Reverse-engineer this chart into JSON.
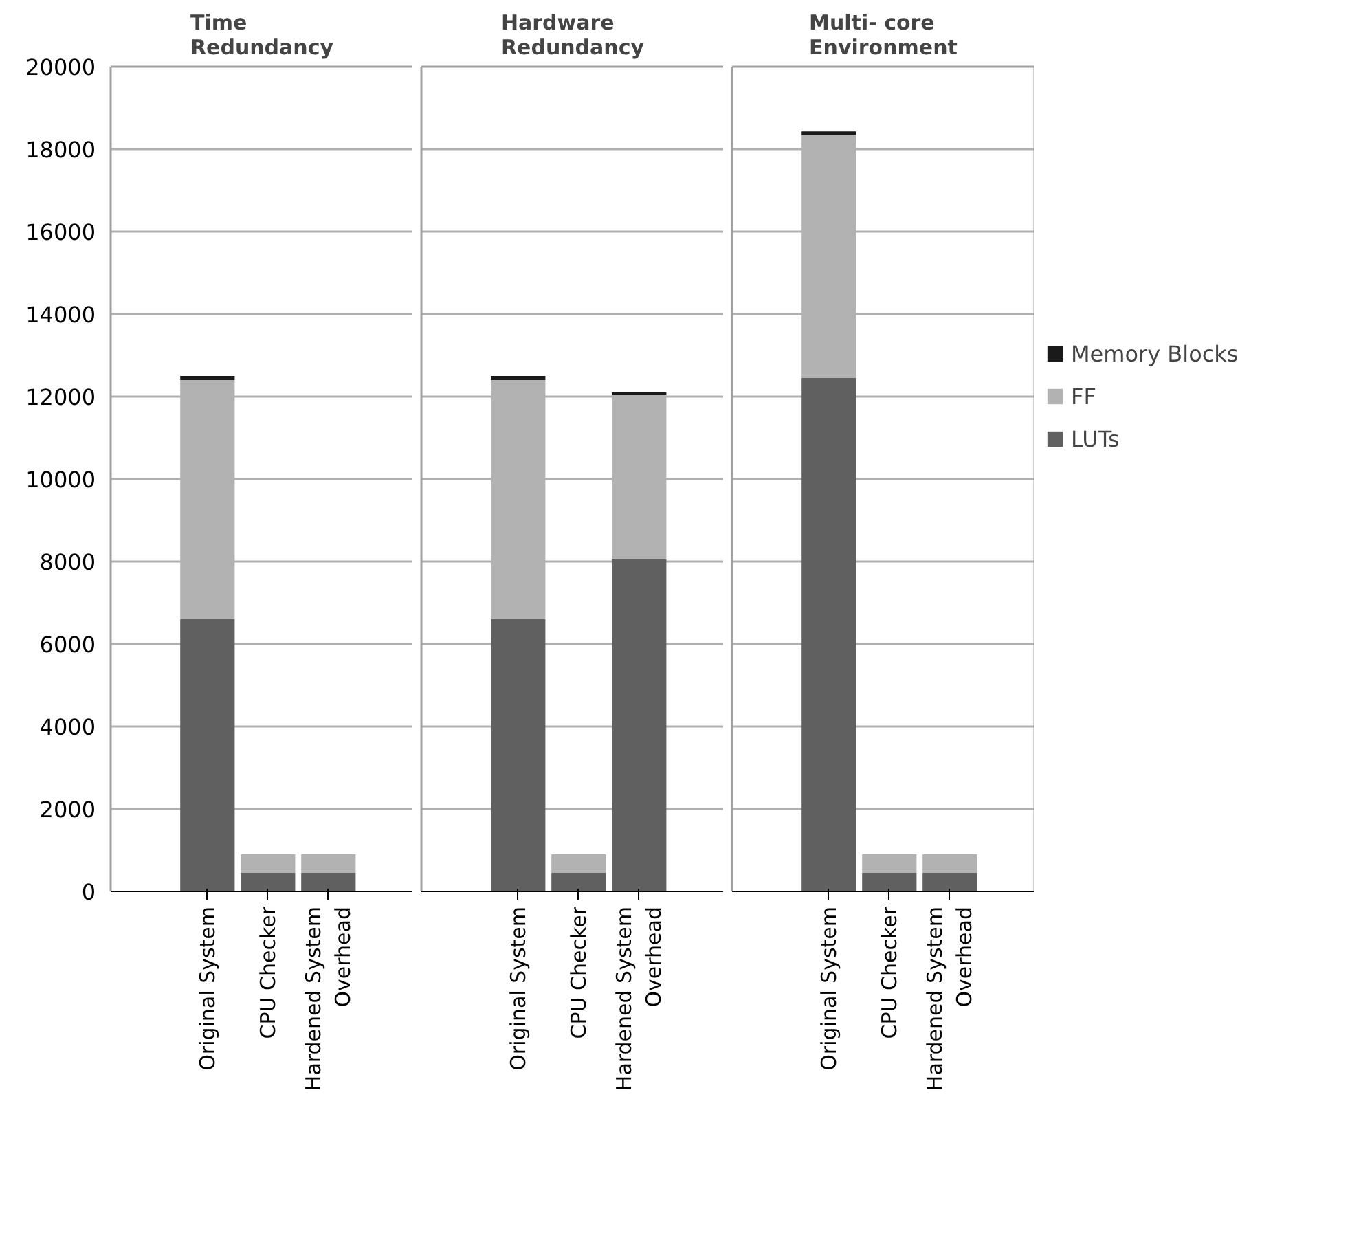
{
  "chart_data": [
    {
      "type": "bar",
      "stacked": true,
      "title": "Time\nRedundancy",
      "categories": [
        "Original System",
        "CPU Checker",
        "Hardened System\nOverhead"
      ],
      "ylim": [
        0,
        20000
      ],
      "yticks": [
        0,
        2000,
        4000,
        6000,
        8000,
        10000,
        12000,
        14000,
        16000,
        18000,
        20000
      ],
      "grid": "y",
      "series": [
        {
          "color": "#606060",
          "values": [
            6600,
            450,
            450
          ]
        },
        {
          "color": "#b2b2b2",
          "values": [
            5800,
            450,
            450
          ]
        },
        {
          "color": "#1a1a1a",
          "values": [
            100,
            0,
            0
          ]
        }
      ]
    },
    {
      "type": "bar",
      "stacked": true,
      "title": "Hardware\nRedundancy",
      "categories": [
        "Original System",
        "CPU Checker",
        "Hardened System\nOverhead"
      ],
      "ylim": [
        0,
        20000
      ],
      "yticks": [
        0,
        2000,
        4000,
        6000,
        8000,
        10000,
        12000,
        14000,
        16000,
        18000,
        20000
      ],
      "grid": "y",
      "tick_labels": "x",
      "series": [
        {
          "color": "#606060",
          "values": [
            6600,
            450,
            8050
          ]
        },
        {
          "color": "#b2b2b2",
          "values": [
            5800,
            450,
            4000
          ]
        },
        {
          "color": "#1a1a1a",
          "values": [
            100,
            0,
            50
          ]
        }
      ]
    },
    {
      "type": "bar",
      "stacked": true,
      "title": "Multi- core\nEnvironment",
      "categories": [
        "Original System",
        "CPU Checker",
        "Hardened System\nOverhead"
      ],
      "ylim": [
        0,
        20000
      ],
      "yticks": [
        0,
        2000,
        4000,
        6000,
        8000,
        10000,
        12000,
        14000,
        16000,
        18000,
        20000
      ],
      "grid": "y",
      "tick_labels": "x",
      "legend": "right",
      "series": [
        {
          "name": "LUTs",
          "color": "#606060",
          "values": [
            12450,
            450,
            450
          ]
        },
        {
          "name": "FF",
          "color": "#b2b2b2",
          "values": [
            5900,
            450,
            450
          ]
        },
        {
          "name": "Memory Blocks",
          "color": "#1a1a1a",
          "values": [
            80,
            0,
            0
          ]
        }
      ]
    }
  ]
}
